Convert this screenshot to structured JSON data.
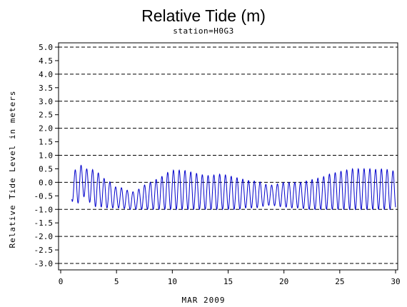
{
  "chart_data": {
    "type": "line",
    "title": "Relative Tide (m)",
    "subtitle": "station=H0G3",
    "xlabel": "MAR 2009",
    "ylabel": "Relative Tide Level in meters",
    "xlim": [
      0,
      30
    ],
    "ylim": [
      -3.0,
      5.0
    ],
    "x_ticks": [
      0,
      5,
      10,
      15,
      20,
      25,
      30
    ],
    "y_ticks": [
      5.0,
      4.5,
      4.0,
      3.5,
      3.0,
      2.5,
      2.0,
      1.5,
      1.0,
      0.5,
      0.0,
      -0.5,
      -1.0,
      -1.5,
      -2.0,
      -2.5,
      -3.0
    ],
    "y_tick_labels": [
      "5.0",
      "4.5",
      "4.0",
      "3.5",
      "3.0",
      "2.5",
      "2.0",
      "1.5",
      "1.0",
      "0.5",
      "0.0",
      "-0.5",
      "-1.0",
      "-1.5",
      "-2.0",
      "-2.5",
      "-3.0"
    ],
    "gridlines_y": [
      5.0,
      4.0,
      3.0,
      2.0,
      1.0,
      0.0,
      -1.0,
      -2.0,
      -3.0
    ],
    "grid_style": "dashed",
    "series": [
      {
        "color": "#0000cc",
        "x": [
          1.0,
          1.5,
          2.0,
          2.5,
          3.0,
          3.5,
          4.0,
          4.5,
          5.0,
          5.5,
          6.0,
          6.5,
          7.0,
          7.5,
          8.0,
          8.5,
          9.0,
          9.5,
          10.0,
          10.5,
          11.0,
          11.5,
          12.0,
          12.5,
          13.0,
          13.5,
          14.0,
          14.5,
          15.0,
          15.5,
          16.0,
          16.5,
          17.0,
          17.5,
          18.0,
          18.5,
          19.0,
          19.5,
          20.0,
          20.5,
          21.0,
          21.5,
          22.0,
          22.5,
          23.0,
          23.5,
          24.0,
          24.5,
          25.0,
          25.5,
          26.0,
          26.5,
          27.0,
          27.5,
          28.0,
          28.5,
          29.0,
          29.5,
          30.0
        ],
        "high": [
          0.4,
          0.5,
          0.7,
          0.4,
          0.5,
          0.3,
          0.1,
          0.0,
          -0.2,
          -0.2,
          -0.3,
          -0.35,
          -0.25,
          -0.1,
          0.0,
          0.1,
          0.2,
          0.35,
          0.45,
          0.45,
          0.45,
          0.4,
          0.35,
          0.3,
          0.25,
          0.25,
          0.3,
          0.3,
          0.25,
          0.2,
          0.15,
          0.1,
          0.05,
          0.05,
          0.0,
          -0.1,
          -0.1,
          -0.05,
          0.0,
          0.0,
          0.0,
          0.0,
          0.05,
          0.1,
          0.15,
          0.2,
          0.3,
          0.35,
          0.4,
          0.45,
          0.5,
          0.5,
          0.5,
          0.5,
          0.5,
          0.45,
          0.55,
          0.4,
          0.45
        ],
        "low": [
          -0.7,
          -0.8,
          -0.5,
          -0.7,
          -0.9,
          -0.9,
          -0.95,
          -0.95,
          -0.95,
          -0.95,
          -1.0,
          -1.0,
          -1.0,
          -1.0,
          -1.0,
          -1.0,
          -1.0,
          -1.0,
          -1.0,
          -1.0,
          -1.0,
          -1.0,
          -1.0,
          -1.0,
          -1.0,
          -1.0,
          -1.0,
          -1.0,
          -1.0,
          -1.0,
          -1.0,
          -0.95,
          -0.95,
          -0.95,
          -0.9,
          -0.85,
          -0.85,
          -0.9,
          -0.9,
          -0.95,
          -0.95,
          -0.95,
          -1.0,
          -1.0,
          -1.0,
          -1.0,
          -1.0,
          -1.0,
          -1.0,
          -1.0,
          -1.0,
          -1.0,
          -1.0,
          -1.0,
          -1.0,
          -1.0,
          -1.0,
          -1.0,
          -0.95
        ]
      }
    ]
  }
}
